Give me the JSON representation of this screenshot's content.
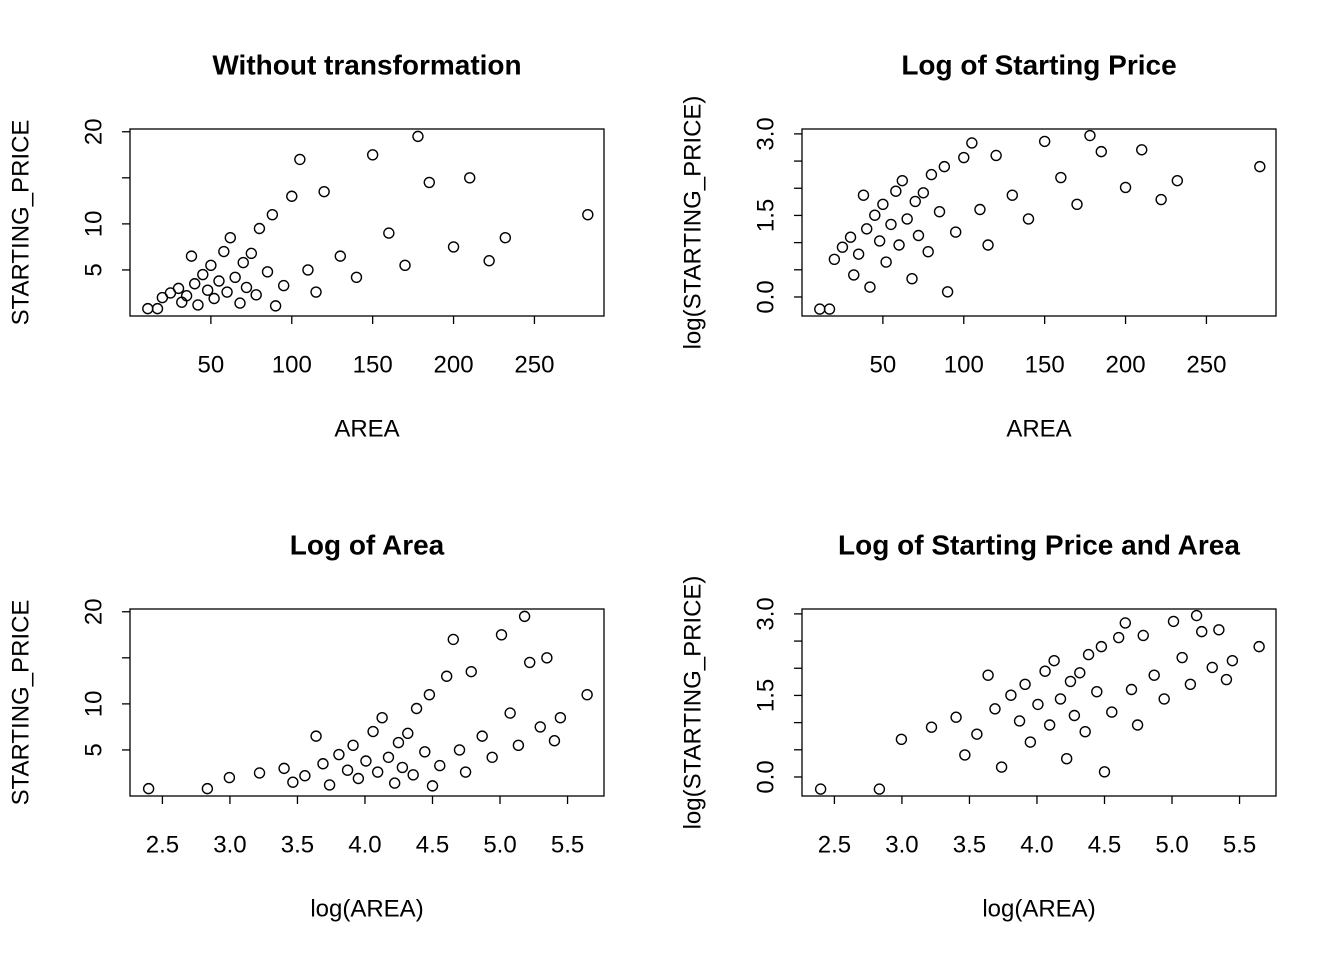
{
  "chart_data": [
    {
      "type": "scatter",
      "title": "Without transformation",
      "x_label": "AREA",
      "y_label": "STARTING_PRICE",
      "xlim": [
        0,
        293
      ],
      "ylim": [
        0,
        20.3
      ],
      "xticks": [
        50,
        100,
        150,
        200,
        250
      ],
      "yticks": [
        5,
        10,
        20
      ],
      "minor_yticks": [
        15
      ],
      "x": [
        11,
        17,
        20,
        25,
        30,
        32,
        35,
        38,
        40,
        42,
        45,
        48,
        50,
        52,
        55,
        58,
        60,
        62,
        65,
        68,
        70,
        72,
        75,
        78,
        80,
        85,
        88,
        90,
        95,
        100,
        105,
        110,
        115,
        120,
        130,
        140,
        150,
        160,
        170,
        178,
        185,
        200,
        210,
        222,
        232,
        283
      ],
      "y": [
        0.8,
        0.8,
        2.0,
        2.5,
        3.0,
        1.5,
        2.2,
        6.5,
        3.5,
        1.2,
        4.5,
        2.8,
        5.5,
        1.9,
        3.8,
        7.0,
        2.6,
        8.5,
        4.2,
        1.4,
        5.8,
        3.1,
        6.8,
        2.3,
        9.5,
        4.8,
        11.0,
        1.1,
        3.3,
        13.0,
        17.0,
        5.0,
        2.6,
        13.5,
        6.5,
        4.2,
        17.5,
        9.0,
        5.5,
        19.5,
        14.5,
        7.5,
        15.0,
        6.0,
        8.5,
        11.0
      ]
    },
    {
      "type": "scatter",
      "title": "Log of Starting Price",
      "x_label": "AREA",
      "y_label": "log(STARTING_PRICE)",
      "xlim": [
        0,
        293
      ],
      "ylim": [
        -0.35,
        3.09
      ],
      "xticks": [
        50,
        100,
        150,
        200,
        250
      ],
      "yticks": [
        {
          "value": 0,
          "label": "0.0"
        },
        {
          "value": 1.5,
          "label": "1.5"
        },
        {
          "value": 3,
          "label": "3.0"
        }
      ],
      "minor_yticks": [
        0.5,
        1,
        2,
        2.5
      ],
      "x": [
        11,
        17,
        20,
        25,
        30,
        32,
        35,
        38,
        40,
        42,
        45,
        48,
        50,
        52,
        55,
        58,
        60,
        62,
        65,
        68,
        70,
        72,
        75,
        78,
        80,
        85,
        88,
        90,
        95,
        100,
        105,
        110,
        115,
        120,
        130,
        140,
        150,
        160,
        170,
        178,
        185,
        200,
        210,
        222,
        232,
        283
      ],
      "y": [
        -0.223,
        -0.223,
        0.693,
        0.916,
        1.099,
        0.405,
        0.788,
        1.872,
        1.253,
        0.182,
        1.504,
        1.03,
        1.705,
        0.642,
        1.335,
        1.946,
        0.956,
        2.14,
        1.435,
        0.336,
        1.758,
        1.131,
        1.917,
        0.833,
        2.251,
        1.569,
        2.398,
        0.095,
        1.194,
        2.565,
        2.833,
        1.609,
        0.956,
        2.603,
        1.872,
        1.435,
        2.862,
        2.197,
        1.705,
        2.97,
        2.674,
        2.015,
        2.708,
        1.792,
        2.14,
        2.398
      ]
    },
    {
      "type": "scatter",
      "title": "Log of Area",
      "x_label": "log(AREA)",
      "y_label": "STARTING_PRICE",
      "xlim": [
        2.26,
        5.77
      ],
      "ylim": [
        0,
        20.3
      ],
      "xticks": [
        2.5,
        {
          "value": 3,
          "label": "3.0"
        },
        3.5,
        {
          "value": 4,
          "label": "4.0"
        },
        4.5,
        {
          "value": 5,
          "label": "5.0"
        },
        5.5
      ],
      "yticks": [
        5,
        10,
        20
      ],
      "minor_yticks": [
        15
      ],
      "x": [
        2.398,
        2.833,
        2.996,
        3.219,
        3.401,
        3.466,
        3.555,
        3.638,
        3.689,
        3.738,
        3.807,
        3.871,
        3.912,
        3.951,
        4.007,
        4.06,
        4.094,
        4.127,
        4.174,
        4.22,
        4.248,
        4.277,
        4.317,
        4.357,
        4.382,
        4.443,
        4.477,
        4.5,
        4.554,
        4.605,
        4.654,
        4.7,
        4.745,
        4.787,
        4.868,
        4.942,
        5.011,
        5.075,
        5.136,
        5.182,
        5.22,
        5.298,
        5.347,
        5.403,
        5.447,
        5.645
      ],
      "y": [
        0.8,
        0.8,
        2.0,
        2.5,
        3.0,
        1.5,
        2.2,
        6.5,
        3.5,
        1.2,
        4.5,
        2.8,
        5.5,
        1.9,
        3.8,
        7.0,
        2.6,
        8.5,
        4.2,
        1.4,
        5.8,
        3.1,
        6.8,
        2.3,
        9.5,
        4.8,
        11.0,
        1.1,
        3.3,
        13.0,
        17.0,
        5.0,
        2.6,
        13.5,
        6.5,
        4.2,
        17.5,
        9.0,
        5.5,
        19.5,
        14.5,
        7.5,
        15.0,
        6.0,
        8.5,
        11.0
      ]
    },
    {
      "type": "scatter",
      "title": "Log of Starting Price and Area",
      "x_label": "log(AREA)",
      "y_label": "log(STARTING_PRICE)",
      "xlim": [
        2.26,
        5.77
      ],
      "ylim": [
        -0.35,
        3.09
      ],
      "xticks": [
        2.5,
        {
          "value": 3,
          "label": "3.0"
        },
        3.5,
        {
          "value": 4,
          "label": "4.0"
        },
        4.5,
        {
          "value": 5,
          "label": "5.0"
        },
        5.5
      ],
      "yticks": [
        {
          "value": 0,
          "label": "0.0"
        },
        {
          "value": 1.5,
          "label": "1.5"
        },
        {
          "value": 3,
          "label": "3.0"
        }
      ],
      "minor_yticks": [
        0.5,
        1,
        2,
        2.5
      ],
      "x": [
        2.398,
        2.833,
        2.996,
        3.219,
        3.401,
        3.466,
        3.555,
        3.638,
        3.689,
        3.738,
        3.807,
        3.871,
        3.912,
        3.951,
        4.007,
        4.06,
        4.094,
        4.127,
        4.174,
        4.22,
        4.248,
        4.277,
        4.317,
        4.357,
        4.382,
        4.443,
        4.477,
        4.5,
        4.554,
        4.605,
        4.654,
        4.7,
        4.745,
        4.787,
        4.868,
        4.942,
        5.011,
        5.075,
        5.136,
        5.182,
        5.22,
        5.298,
        5.347,
        5.403,
        5.447,
        5.645
      ],
      "y": [
        -0.223,
        -0.223,
        0.693,
        0.916,
        1.099,
        0.405,
        0.788,
        1.872,
        1.253,
        0.182,
        1.504,
        1.03,
        1.705,
        0.642,
        1.335,
        1.946,
        0.956,
        2.14,
        1.435,
        0.336,
        1.758,
        1.131,
        1.917,
        0.833,
        2.251,
        1.569,
        2.398,
        0.095,
        1.194,
        2.565,
        2.833,
        1.609,
        0.956,
        2.603,
        1.872,
        1.435,
        2.862,
        2.197,
        1.705,
        2.97,
        2.674,
        2.015,
        2.708,
        1.792,
        2.14,
        2.398
      ]
    }
  ]
}
